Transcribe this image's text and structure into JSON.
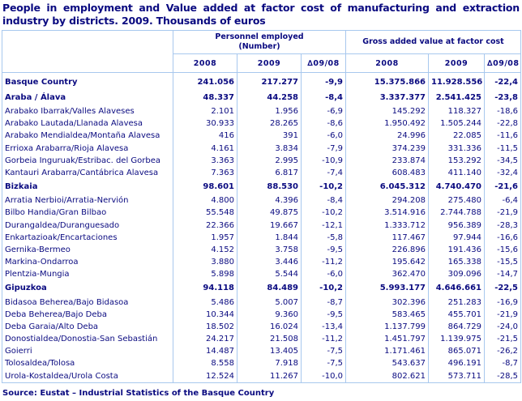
{
  "title": "People in employment and Value added at factor cost of manufacturing and extraction industry by districts. 2009.  Thousands of euros",
  "header": {
    "group1": "Personnel employed (Number)",
    "group2": "Gross added value at factor cost",
    "columns": [
      "2008",
      "2009",
      "∆09/08",
      "2008",
      "2009",
      "∆09/08"
    ]
  },
  "rows": [
    {
      "name": "Basque Country",
      "bold": true,
      "values": [
        "241.056",
        "217.277",
        "-9,9",
        "15.375.866",
        "11.928.556",
        "-22,4"
      ]
    },
    {
      "name": "Araba / Álava",
      "bold": true,
      "values": [
        "48.337",
        "44.258",
        "-8,4",
        "3.337.377",
        "2.541.425",
        "-23,8"
      ]
    },
    {
      "name": "Arabako Ibarrak/Valles Alaveses",
      "values": [
        "2.101",
        "1.956",
        "-6,9",
        "145.292",
        "118.327",
        "-18,6"
      ]
    },
    {
      "name": "Arabako Lautada/Llanada Alavesa",
      "values": [
        "30.933",
        "28.265",
        "-8,6",
        "1.950.492",
        "1.505.244",
        "-22,8"
      ]
    },
    {
      "name": "Arabako Mendialdea/Montaña Alavesa",
      "values": [
        "416",
        "391",
        "-6,0",
        "24.996",
        "22.085",
        "-11,6"
      ]
    },
    {
      "name": "Errioxa Arabarra/Rioja Alavesa",
      "values": [
        "4.161",
        "3.834",
        "-7,9",
        "374.239",
        "331.336",
        "-11,5"
      ]
    },
    {
      "name": "Gorbeia Inguruak/Estribac. del Gorbea",
      "values": [
        "3.363",
        "2.995",
        "-10,9",
        "233.874",
        "153.292",
        "-34,5"
      ]
    },
    {
      "name": "Kantauri Arabarra/Cantábrica Alavesa",
      "values": [
        "7.363",
        "6.817",
        "-7,4",
        "608.483",
        "411.140",
        "-32,4"
      ]
    },
    {
      "name": "Bizkaia",
      "bold": true,
      "values": [
        "98.601",
        "88.530",
        "-10,2",
        "6.045.312",
        "4.740.470",
        "-21,6"
      ]
    },
    {
      "name": "Arratia Nerbioi/Arratia-Nervión",
      "values": [
        "4.800",
        "4.396",
        "-8,4",
        "294.208",
        "275.480",
        "-6,4"
      ]
    },
    {
      "name": "Bilbo Handia/Gran Bilbao",
      "values": [
        "55.548",
        "49.875",
        "-10,2",
        "3.514.916",
        "2.744.788",
        "-21,9"
      ]
    },
    {
      "name": "Durangaldea/Duranguesado",
      "values": [
        "22.366",
        "19.667",
        "-12,1",
        "1.333.712",
        "956.389",
        "-28,3"
      ]
    },
    {
      "name": "Enkartazioak/Encartaciones",
      "values": [
        "1.957",
        "1.844",
        "-5,8",
        "117.467",
        "97.944",
        "-16,6"
      ]
    },
    {
      "name": "Gernika-Bermeo",
      "values": [
        "4.152",
        "3.758",
        "-9,5",
        "226.896",
        "191.436",
        "-15,6"
      ]
    },
    {
      "name": "Markina-Ondarroa",
      "values": [
        "3.880",
        "3.446",
        "-11,2",
        "195.642",
        "165.338",
        "-15,5"
      ]
    },
    {
      "name": "Plentzia-Mungia",
      "values": [
        "5.898",
        "5.544",
        "-6,0",
        "362.470",
        "309.096",
        "-14,7"
      ]
    },
    {
      "name": "Gipuzkoa",
      "bold": true,
      "values": [
        "94.118",
        "84.489",
        "-10,2",
        "5.993.177",
        "4.646.661",
        "-22,5"
      ]
    },
    {
      "name": "Bidasoa Beherea/Bajo Bidasoa",
      "values": [
        "5.486",
        "5.007",
        "-8,7",
        "302.396",
        "251.283",
        "-16,9"
      ]
    },
    {
      "name": "Deba Beherea/Bajo Deba",
      "values": [
        "10.344",
        "9.360",
        "-9,5",
        "583.465",
        "455.701",
        "-21,9"
      ]
    },
    {
      "name": "Deba Garaia/Alto Deba",
      "values": [
        "18.502",
        "16.024",
        "-13,4",
        "1.137.799",
        "864.729",
        "-24,0"
      ]
    },
    {
      "name": "Donostialdea/Donostia-San Sebastián",
      "values": [
        "24.217",
        "21.508",
        "-11,2",
        "1.451.797",
        "1.139.975",
        "-21,5"
      ]
    },
    {
      "name": "Goierri",
      "values": [
        "14.487",
        "13.405",
        "-7,5",
        "1.171.461",
        "865.071",
        "-26,2"
      ]
    },
    {
      "name": "Tolosaldea/Tolosa",
      "values": [
        "8.558",
        "7.918",
        "-7,5",
        "543.637",
        "496.191",
        "-8,7"
      ]
    },
    {
      "name": "Urola-Kostaldea/Urola Costa",
      "values": [
        "12.524",
        "11.267",
        "-10,0",
        "802.621",
        "573.711",
        "-28,5"
      ]
    }
  ],
  "source": "Source: Eustat – Industrial Statistics of the Basque Country",
  "colors": {
    "text": "#0a0a80",
    "border": "#a8c8ee"
  }
}
